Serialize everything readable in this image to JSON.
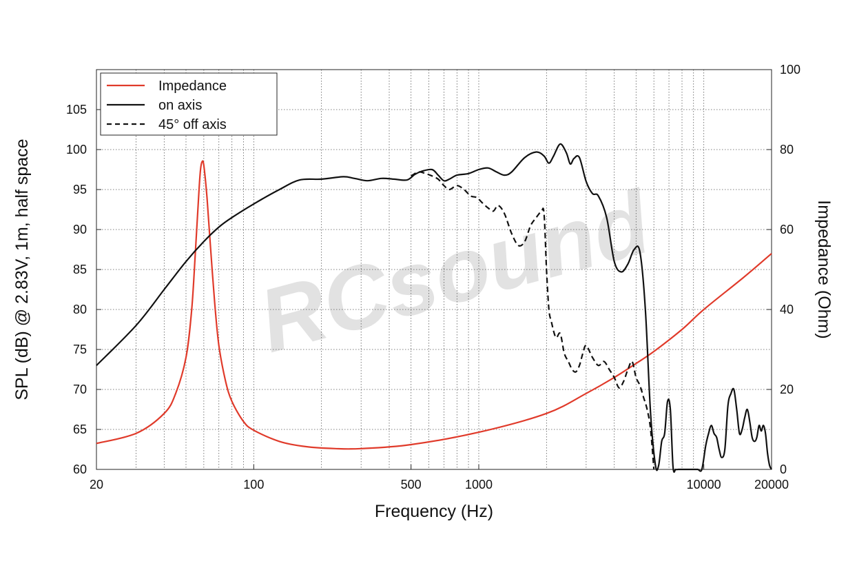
{
  "chart_data": {
    "type": "line",
    "watermark": "RCsound",
    "xlabel": "Frequency (Hz)",
    "ylabel": "SPL (dB) @ 2.83V, 1m, half space",
    "y2label": "Impedance (Ohm)",
    "xscale": "log",
    "xlim": [
      20,
      20000
    ],
    "ylim": [
      60,
      110
    ],
    "y2lim": [
      0,
      100
    ],
    "grid": true,
    "legend_position": "top-left",
    "x_ticks": [
      {
        "value": 20,
        "label": "20"
      },
      {
        "value": 100,
        "label": "100"
      },
      {
        "value": 500,
        "label": "500"
      },
      {
        "value": 1000,
        "label": "1000"
      },
      {
        "value": 10000,
        "label": "10000"
      },
      {
        "value": 20000,
        "label": "20000"
      }
    ],
    "y_ticks": [
      "60",
      "65",
      "70",
      "75",
      "80",
      "85",
      "90",
      "95",
      "100",
      "105"
    ],
    "y2_ticks": [
      "0",
      "20",
      "40",
      "60",
      "80",
      "100"
    ],
    "series": [
      {
        "name": "Impedance",
        "axis": "right",
        "color": "#e03a2a",
        "style": "solid",
        "x": [
          20,
          30,
          40,
          45,
          50,
          53,
          55,
          57,
          58,
          59,
          60,
          62,
          64,
          67,
          70,
          75,
          80,
          90,
          100,
          130,
          170,
          230,
          300,
          500,
          1000,
          2000,
          3000,
          4000,
          5000,
          6000,
          8000,
          10000,
          15000,
          20000
        ],
        "y": [
          6.5,
          9,
          14,
          19,
          28,
          40,
          54,
          69,
          75,
          77,
          76,
          68,
          57,
          42,
          31,
          22,
          17,
          12,
          9.8,
          7,
          5.7,
          5.2,
          5.2,
          6.2,
          9.3,
          14,
          19,
          23,
          26.5,
          29.5,
          35,
          40,
          48,
          54
        ]
      },
      {
        "name": "on axis",
        "axis": "left",
        "color": "#111111",
        "style": "solid",
        "x": [
          20,
          30,
          40,
          50,
          60,
          70,
          80,
          100,
          130,
          160,
          200,
          250,
          280,
          320,
          370,
          420,
          480,
          520,
          560,
          620,
          660,
          700,
          740,
          800,
          900,
          1000,
          1100,
          1200,
          1300,
          1400,
          1600,
          1800,
          1950,
          2050,
          2150,
          2300,
          2450,
          2550,
          2650,
          2800,
          3000,
          3200,
          3400,
          3700,
          4000,
          4300,
          4600,
          4900,
          5200,
          5500,
          5800,
          6100,
          6300,
          6500,
          6700,
          6900,
          7100,
          7300,
          7500,
          7700,
          8200,
          8600,
          9000,
          9400,
          9800,
          10200,
          10500,
          10800,
          11100,
          11400,
          11700,
          12000,
          12400,
          12800,
          13200,
          13600,
          14000,
          14400,
          14800,
          15200,
          15600,
          16000,
          16400,
          16800,
          17200,
          17600,
          18000,
          18400,
          18800,
          19200,
          19600,
          20000
        ],
        "y": [
          73,
          78,
          82.5,
          86,
          88.5,
          90.3,
          91.5,
          93.2,
          95,
          96.2,
          96.3,
          96.6,
          96.4,
          96.1,
          96.4,
          96.3,
          96.2,
          96.9,
          97.3,
          97.5,
          96.8,
          96.1,
          96.3,
          96.8,
          97,
          97.5,
          97.7,
          97.2,
          96.8,
          97.2,
          99,
          99.7,
          99.2,
          98.3,
          99.2,
          100.7,
          99.6,
          98.2,
          98.9,
          99,
          96,
          94.5,
          94.2,
          91.5,
          86,
          84.7,
          85.7,
          87.5,
          87.2,
          80,
          67,
          60.5,
          60.5,
          63.5,
          64.5,
          68.5,
          67.5,
          60.3,
          60,
          60,
          60,
          60,
          60,
          60,
          60,
          63,
          64.5,
          65.5,
          64.5,
          64,
          62.5,
          61.5,
          62.5,
          68,
          69.5,
          70,
          67.5,
          64.5,
          65,
          66.5,
          67.5,
          66,
          64,
          63.5,
          64,
          65.5,
          64.8,
          65.5,
          64.5,
          62,
          60.5,
          60
        ]
      },
      {
        "name": "45° off axis",
        "axis": "left",
        "color": "#111111",
        "style": "dashed",
        "x": [
          500,
          540,
          580,
          620,
          660,
          700,
          740,
          800,
          860,
          920,
          980,
          1040,
          1100,
          1160,
          1220,
          1300,
          1400,
          1500,
          1600,
          1700,
          1800,
          1900,
          1950,
          2000,
          2050,
          2100,
          2200,
          2300,
          2400,
          2500,
          2600,
          2700,
          2800,
          2900,
          3000,
          3200,
          3400,
          3600,
          3800,
          4000,
          4200,
          4400,
          4600,
          4800,
          5000,
          5200,
          5400,
          5600,
          5800,
          6000
        ],
        "y": [
          96.7,
          97.2,
          97,
          96.7,
          96.3,
          95.5,
          95,
          95.5,
          95,
          94.2,
          94,
          93.3,
          92.7,
          92.3,
          93,
          92,
          89.5,
          88,
          88.5,
          90.5,
          91.5,
          92.3,
          92,
          85,
          80,
          78.5,
          76.5,
          77,
          74.5,
          73.5,
          72.5,
          72.2,
          73,
          74.5,
          75.5,
          74,
          73,
          73.5,
          72.5,
          71.5,
          70.2,
          71,
          72.5,
          73.5,
          71.5,
          70.5,
          69,
          67.5,
          65,
          60
        ]
      }
    ]
  }
}
